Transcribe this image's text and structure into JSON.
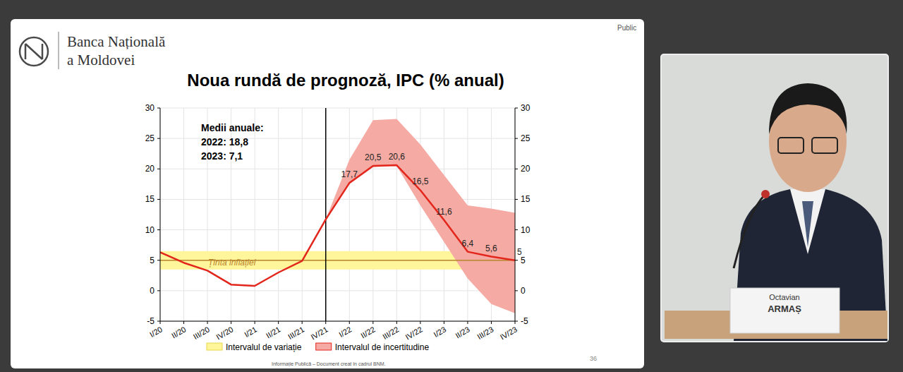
{
  "page": {
    "org": [
      "Banca Națională",
      "a Moldovei"
    ],
    "public_label": "Public",
    "page_number": "36",
    "footer": "Informație Publică – Document creat în cadrul BNM.",
    "speaker_name": [
      "Octavian",
      "ARMAȘ"
    ]
  },
  "chart_data": {
    "type": "line",
    "title": "Noua rundă de prognoză,  IPC (% anual)",
    "categories": [
      "I/20",
      "II/20",
      "III/20",
      "IV/20",
      "I/21",
      "II/21",
      "III/21",
      "IV/21",
      "I/22",
      "II/22",
      "III/22",
      "IV/22",
      "I/23",
      "II/23",
      "III/23",
      "IV/23"
    ],
    "series": [
      {
        "type": "line",
        "color": "#e3261c",
        "values": [
          6.3,
          4.6,
          3.3,
          1.0,
          0.8,
          3.0,
          4.9,
          11.7,
          17.7,
          20.5,
          20.6,
          16.5,
          11.6,
          6.4,
          5.6,
          5.0
        ],
        "value_labels": [
          null,
          null,
          null,
          null,
          null,
          null,
          null,
          null,
          "17,7",
          "20,5",
          "20,6",
          "16,5",
          "11,6",
          "6,4",
          "5,6",
          "5"
        ]
      },
      {
        "name": "Intervalul de incertitudine",
        "type": "band",
        "color": "#f5aaa3",
        "lower": [
          null,
          null,
          null,
          null,
          null,
          null,
          null,
          11.7,
          17.5,
          20.3,
          20.5,
          14.0,
          8.0,
          2.0,
          -2.2,
          -3.7
        ],
        "upper": [
          null,
          null,
          null,
          null,
          null,
          null,
          null,
          11.7,
          21.5,
          28.0,
          28.2,
          24.0,
          19.0,
          14.0,
          13.5,
          12.8
        ]
      },
      {
        "name": "Intervalul de variație",
        "type": "band",
        "color": "#fff59a",
        "lower": [
          3.5,
          3.5,
          3.5,
          3.5,
          3.5,
          3.5,
          3.5,
          3.5,
          3.5,
          3.5,
          3.5,
          3.5,
          3.5,
          3.5,
          3.5,
          3.5
        ],
        "upper": [
          6.5,
          6.5,
          6.5,
          6.5,
          6.5,
          6.5,
          6.5,
          6.5,
          6.5,
          6.5,
          6.5,
          6.5,
          6.5,
          6.5,
          6.5,
          6.5
        ]
      }
    ],
    "target": {
      "label": "Ținta inflației",
      "value": 5,
      "color": "#b8842c"
    },
    "vline": "IV/21",
    "annotations": [
      "Medii anuale:",
      "2022: 18,8",
      "2023:  7,1"
    ],
    "ylim": [
      -5,
      30
    ],
    "yticks": [
      -5,
      0,
      5,
      10,
      15,
      20,
      25,
      30
    ],
    "y2lim": [
      -5,
      30
    ],
    "y2ticks": [
      -5,
      0,
      5,
      10,
      15,
      20,
      25,
      30
    ],
    "grid": true,
    "data_labels": true,
    "legend": "bottom"
  }
}
